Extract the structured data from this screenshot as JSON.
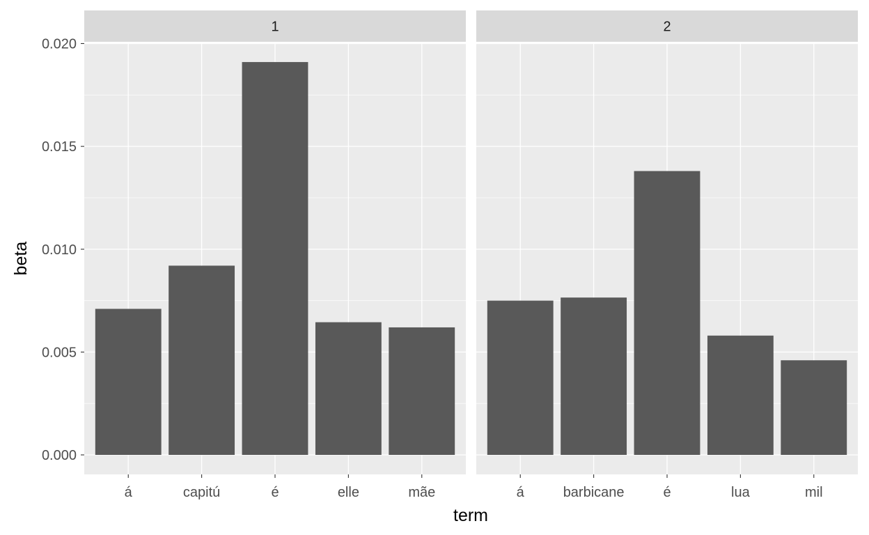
{
  "colors": {
    "panel_bg": "#ebebeb",
    "strip_bg": "#d9d9d9",
    "grid_major": "#ffffff",
    "bar_fill": "#595959",
    "tick_color": "#333333"
  },
  "chart_data": {
    "type": "bar",
    "faceted": true,
    "xlabel": "term",
    "ylabel": "beta",
    "ylim": [
      0,
      0.02
    ],
    "y_ticks": [
      "0.000",
      "0.005",
      "0.010",
      "0.015",
      "0.020"
    ],
    "y_tick_values": [
      0,
      0.005,
      0.01,
      0.015,
      0.02
    ],
    "grid": true,
    "panels": [
      {
        "label": "1",
        "categories": [
          "á",
          "capitú",
          "é",
          "elle",
          "mãe"
        ],
        "values": [
          0.0071,
          0.0092,
          0.0191,
          0.00645,
          0.0062
        ]
      },
      {
        "label": "2",
        "categories": [
          "á",
          "barbicane",
          "é",
          "lua",
          "mil"
        ],
        "values": [
          0.0075,
          0.00765,
          0.0138,
          0.0058,
          0.0046
        ]
      }
    ]
  }
}
